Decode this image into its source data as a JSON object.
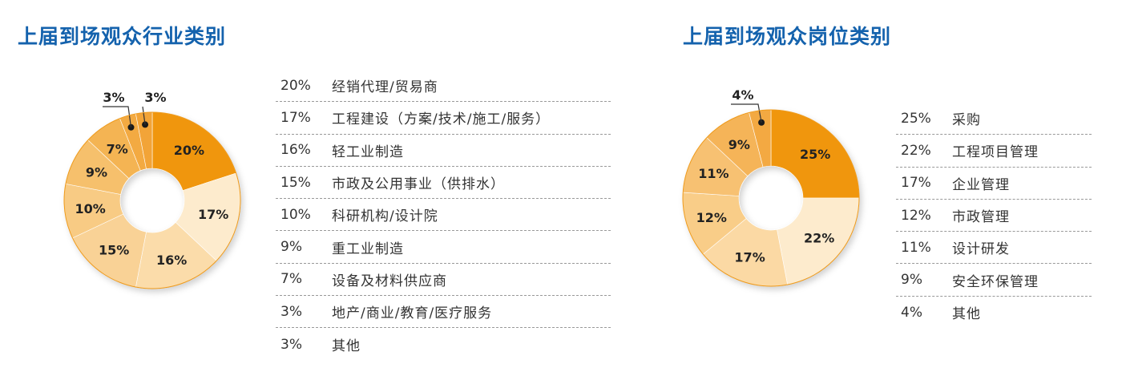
{
  "chart_data": [
    {
      "type": "pie",
      "title": "上届到场观众行业类别",
      "categories": [
        "经销代理/贸易商",
        "工程建设（方案/技术/施工/服务）",
        "轻工业制造",
        "市政及公用事业（供排水）",
        "科研机构/设计院",
        "重工业制造",
        "设备及材料供应商",
        "地产/商业/教育/医疗服务",
        "其他"
      ],
      "values": [
        20,
        17,
        16,
        15,
        10,
        9,
        7,
        3,
        3
      ],
      "value_labels": [
        "20%",
        "17%",
        "16%",
        "15%",
        "10%",
        "9%",
        "7%",
        "3%",
        "3%"
      ],
      "colors": [
        "#f0960a",
        "#fdebcd",
        "#fbdcaa",
        "#f9d296",
        "#f8cb84",
        "#f6c06c",
        "#f4b452",
        "#f3aa42",
        "#f2a437"
      ]
    },
    {
      "type": "pie",
      "title": "上届到场观众岗位类别",
      "categories": [
        "采购",
        "工程项目管理",
        "企业管理",
        "市政管理",
        "设计研发",
        "安全环保管理",
        "其他"
      ],
      "values": [
        25,
        22,
        17,
        12,
        11,
        9,
        4
      ],
      "value_labels": [
        "25%",
        "22%",
        "17%",
        "12%",
        "11%",
        "9%",
        "4%"
      ],
      "colors": [
        "#f0960a",
        "#fdebcd",
        "#fbd9a4",
        "#f9cd88",
        "#f7c172",
        "#f5b458",
        "#f3a942"
      ]
    }
  ]
}
